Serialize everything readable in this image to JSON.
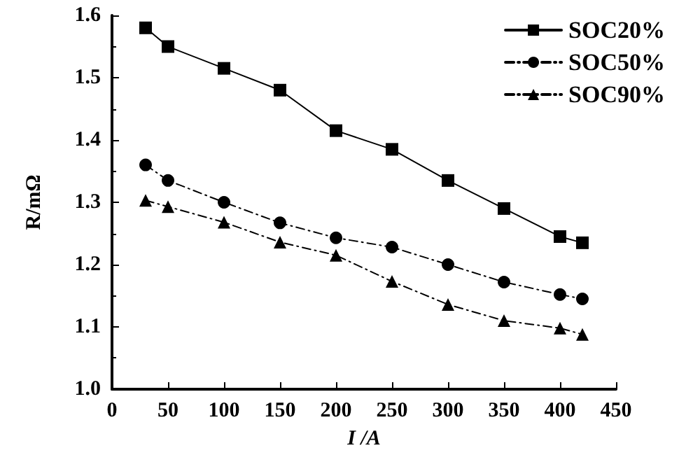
{
  "chart_data": {
    "type": "line",
    "xlabel": "I /A",
    "ylabel": "R/mΩ",
    "x": [
      30,
      50,
      100,
      150,
      200,
      250,
      300,
      350,
      400,
      420
    ],
    "xlim": [
      0,
      450
    ],
    "xticks": [
      0,
      50,
      100,
      150,
      200,
      250,
      300,
      350,
      400,
      450
    ],
    "ylim": [
      1.0,
      1.6
    ],
    "yticks": [
      {
        "value": 1,
        "label": "1.0"
      },
      1.1,
      1.2,
      1.3,
      1.4,
      1.5,
      1.6
    ],
    "grid": false,
    "legend": "top right",
    "series": [
      {
        "name": "SOC20%",
        "color": "#000000",
        "marker": "square",
        "line_style": "solid",
        "values": [
          1.58,
          1.55,
          1.515,
          1.48,
          1.415,
          1.385,
          1.335,
          1.29,
          1.245,
          1.235
        ]
      },
      {
        "name": "SOC50%",
        "color": "#000000",
        "marker": "circle",
        "line_style": "dashed",
        "values": [
          1.36,
          1.335,
          1.3,
          1.267,
          1.243,
          1.228,
          1.2,
          1.172,
          1.152,
          1.145
        ]
      },
      {
        "name": "SOC90%",
        "color": "#000000",
        "marker": "triangle",
        "line_style": "dashed",
        "values": [
          1.303,
          1.293,
          1.268,
          1.236,
          1.215,
          1.173,
          1.136,
          1.11,
          1.098,
          1.088
        ]
      }
    ]
  }
}
